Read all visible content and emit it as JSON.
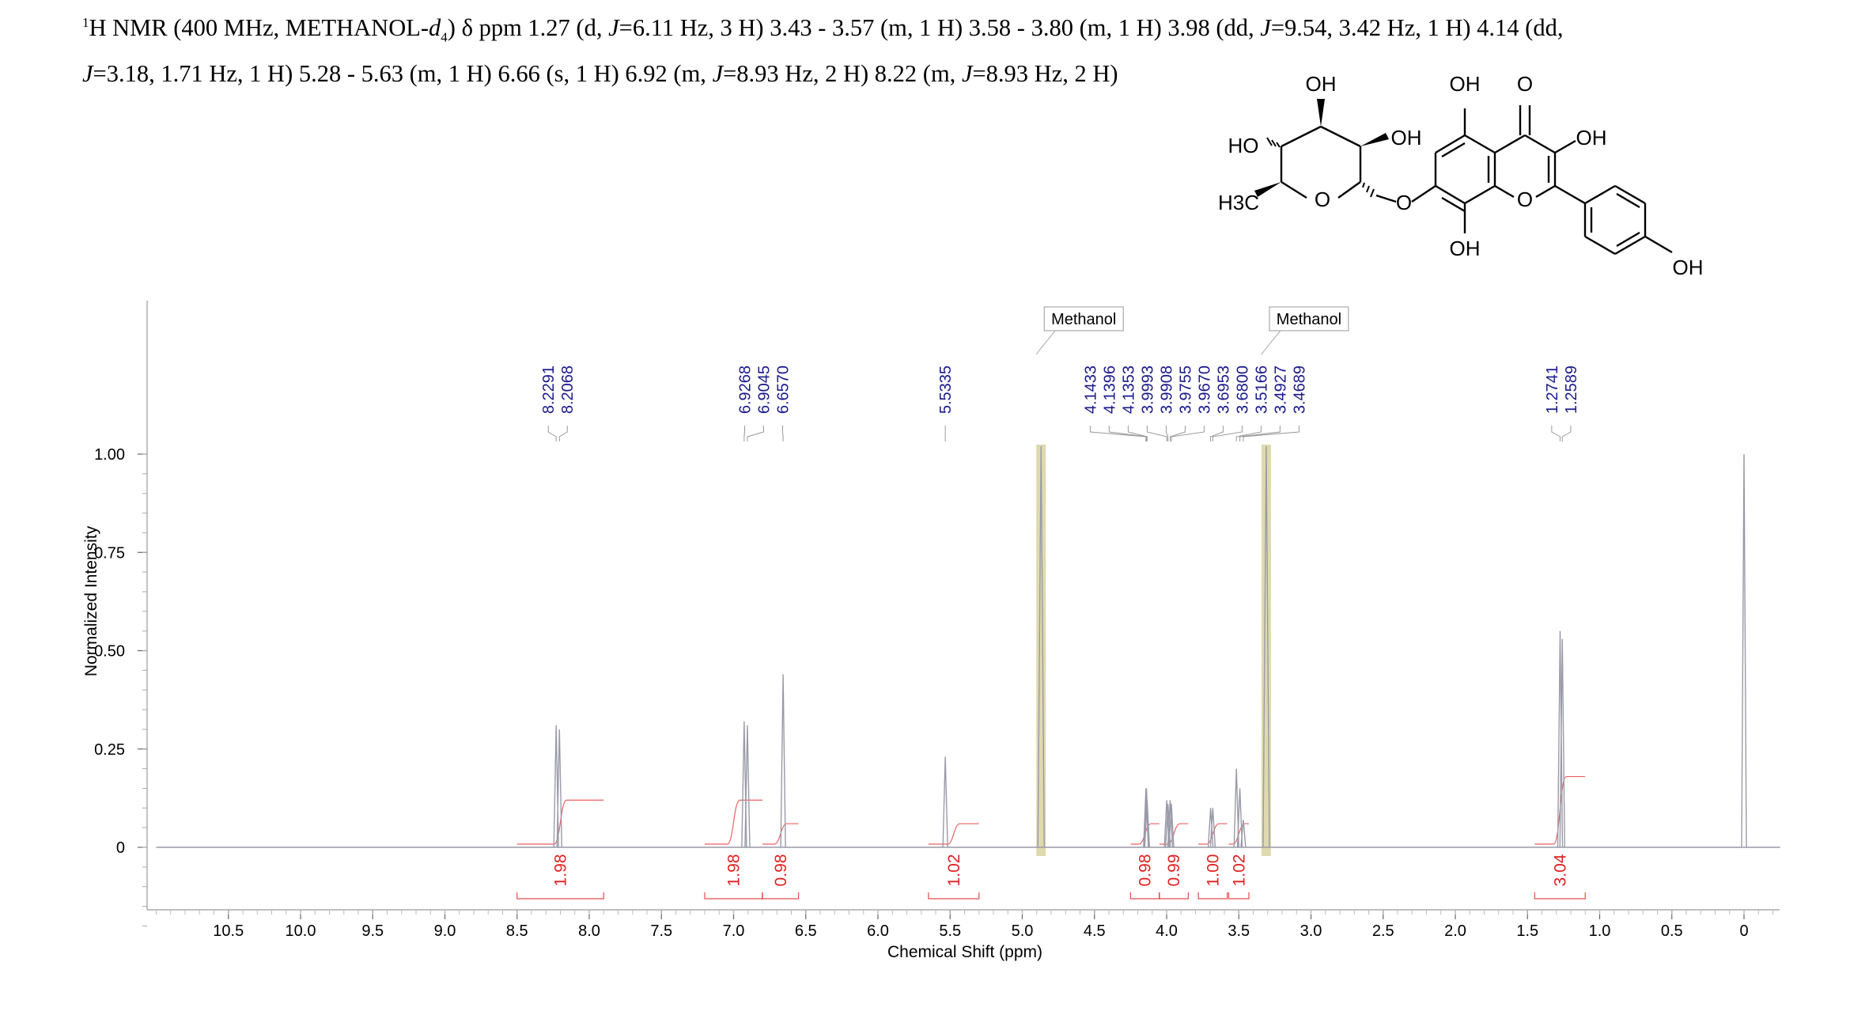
{
  "header": {
    "iso_sup": "1",
    "lead": "H NMR (400 MHz, METHANOL-",
    "solvent_d": "d",
    "solvent_sub": "4",
    "after_solvent": ")",
    "delta": "δ",
    "line1_rest": " ppm 1.27 (d, ",
    "J1": "J",
    "t1": "=6.11 Hz, 3 H) 3.43 - 3.57 (m, 1 H) 3.58 - 3.80 (m, 1 H) 3.98 (dd, ",
    "J2": "J",
    "t2": "=9.54, 3.42 Hz, 1 H) 4.14 (dd,",
    "J3": "J",
    "t3": "=3.18, 1.71 Hz, 1 H) 5.28 - 5.63 (m, 1 H) 6.66 (s, 1 H) 6.92 (m, ",
    "J4": "J",
    "t4": "=8.93 Hz, 2 H) 8.22 (m, ",
    "J5": "J",
    "t5": "=8.93 Hz, 2 H)"
  },
  "molecule": {
    "labels": [
      "OH",
      "HO",
      "OH",
      "H3C",
      "O",
      "O",
      "OH",
      "O",
      "OH",
      "O",
      "OH",
      "OH"
    ]
  },
  "colors": {
    "spectrum": "#9a9aa8",
    "peak_label": "#1a1a8c",
    "integral": "#e02020",
    "solvent_band": "#d8d4a0"
  },
  "chart_data": {
    "type": "line",
    "title": "",
    "xlabel": "Chemical Shift (ppm)",
    "ylabel": "Normalized Intensity",
    "xlim": [
      11.0,
      -0.25
    ],
    "ylim": [
      -0.2,
      1.0
    ],
    "x_ticks": [
      "10.5",
      "10.0",
      "9.5",
      "9.0",
      "8.5",
      "8.0",
      "7.5",
      "7.0",
      "6.5",
      "6.0",
      "5.5",
      "5.0",
      "4.5",
      "4.0",
      "3.5",
      "3.0",
      "2.5",
      "2.0",
      "1.5",
      "1.0",
      "0.5",
      "0"
    ],
    "y_ticks": [
      "1.00",
      "0.75",
      "0.50",
      "0.25",
      "0"
    ],
    "peaks": [
      {
        "ppm": 8.2291,
        "height": 0.31
      },
      {
        "ppm": 8.2068,
        "height": 0.3
      },
      {
        "ppm": 6.9268,
        "height": 0.32
      },
      {
        "ppm": 6.9045,
        "height": 0.31
      },
      {
        "ppm": 6.657,
        "height": 0.44
      },
      {
        "ppm": 5.5335,
        "height": 0.23
      },
      {
        "ppm": 4.1433,
        "height": 0.15
      },
      {
        "ppm": 4.1396,
        "height": 0.15
      },
      {
        "ppm": 4.1353,
        "height": 0.12
      },
      {
        "ppm": 3.9993,
        "height": 0.12
      },
      {
        "ppm": 3.9908,
        "height": 0.11
      },
      {
        "ppm": 3.9755,
        "height": 0.12
      },
      {
        "ppm": 3.967,
        "height": 0.11
      },
      {
        "ppm": 3.6953,
        "height": 0.1
      },
      {
        "ppm": 3.68,
        "height": 0.1
      },
      {
        "ppm": 3.5166,
        "height": 0.2
      },
      {
        "ppm": 3.4927,
        "height": 0.15
      },
      {
        "ppm": 3.4689,
        "height": 0.07
      },
      {
        "ppm": 1.2741,
        "height": 0.55
      },
      {
        "ppm": 1.2589,
        "height": 0.53
      },
      {
        "ppm": 0.0,
        "height": 1.0
      }
    ],
    "solvent_peaks": [
      {
        "ppm": 4.87,
        "label": "Methanol"
      },
      {
        "ppm": 3.31,
        "label": "Methanol"
      }
    ],
    "peak_label_groups": [
      {
        "labels": [
          "8.2291",
          "8.2068"
        ],
        "ppms": [
          8.2291,
          8.2068
        ]
      },
      {
        "labels": [
          "6.9268",
          "6.9045",
          "6.6570"
        ],
        "ppms": [
          6.9268,
          6.9045,
          6.657
        ]
      },
      {
        "labels": [
          "5.5335"
        ],
        "ppms": [
          5.5335
        ]
      },
      {
        "labels": [
          "4.1433",
          "4.1396",
          "4.1353",
          "3.9993",
          "3.9908",
          "3.9755",
          "3.9670",
          "3.6953",
          "3.6800",
          "3.5166",
          "3.4927",
          "3.4689"
        ],
        "ppms": [
          4.1433,
          4.1396,
          4.1353,
          3.9993,
          3.9908,
          3.9755,
          3.967,
          3.6953,
          3.68,
          3.5166,
          3.4927,
          3.4689
        ]
      },
      {
        "labels": [
          "1.2741",
          "1.2589"
        ],
        "ppms": [
          1.2741,
          1.2589
        ]
      }
    ],
    "integrals": [
      {
        "value": "1.98",
        "from": 8.5,
        "to": 7.9,
        "level": 0.12
      },
      {
        "value": "1.98",
        "from": 7.2,
        "to": 6.8,
        "level": 0.12
      },
      {
        "value": "0.98",
        "from": 6.8,
        "to": 6.55,
        "level": 0.06
      },
      {
        "value": "1.02",
        "from": 5.65,
        "to": 5.3,
        "level": 0.06
      },
      {
        "value": "0.98",
        "from": 4.25,
        "to": 4.05,
        "level": 0.06
      },
      {
        "value": "0.99",
        "from": 4.05,
        "to": 3.85,
        "level": 0.06
      },
      {
        "value": "1.00",
        "from": 3.78,
        "to": 3.58,
        "level": 0.06
      },
      {
        "value": "1.02",
        "from": 3.57,
        "to": 3.43,
        "level": 0.06
      },
      {
        "value": "3.04",
        "from": 1.45,
        "to": 1.1,
        "level": 0.18
      }
    ]
  }
}
